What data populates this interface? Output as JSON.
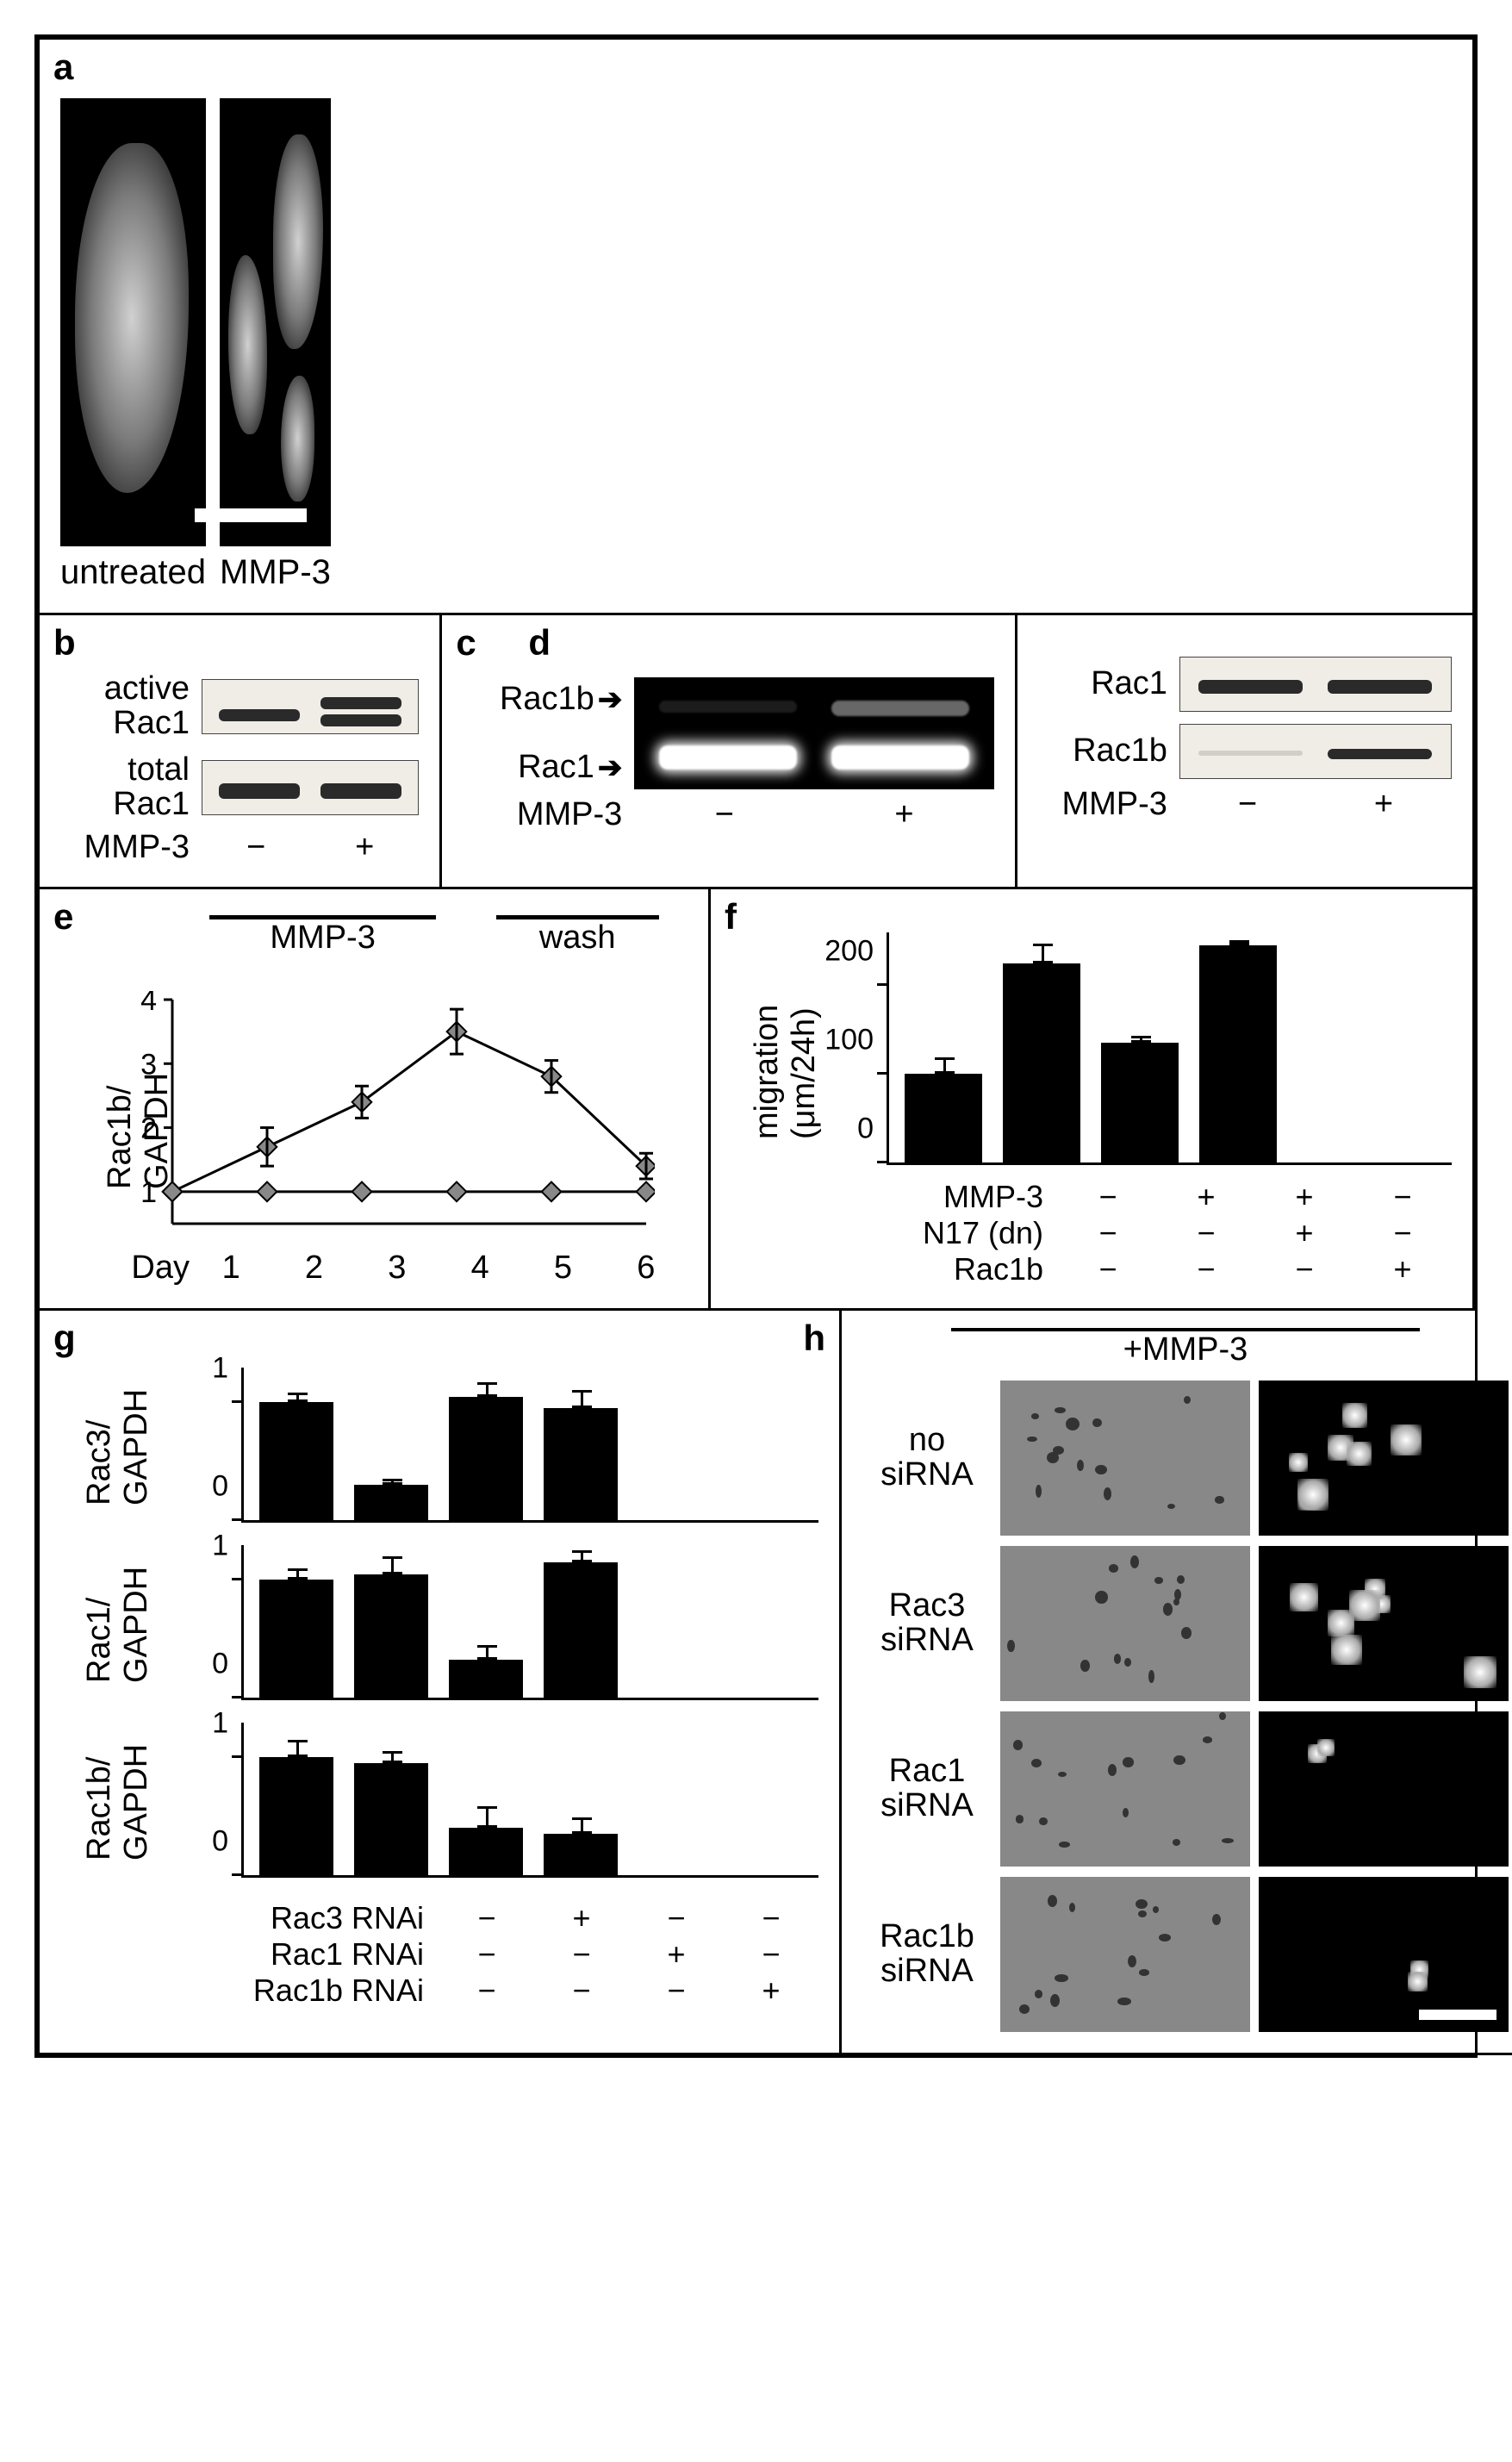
{
  "panels": {
    "a": {
      "label": "a",
      "left_caption": "untreated",
      "right_caption": "MMP-3",
      "scale_bar_present": true,
      "bg_color": "#000000"
    },
    "b": {
      "label": "b",
      "rows": [
        {
          "label": "active\nRac1"
        },
        {
          "label": "total\nRac1"
        }
      ],
      "condition_label": "MMP-3",
      "conditions": [
        "−",
        "+"
      ],
      "background": "#f0ece6",
      "band_color": "#2a2a2a"
    },
    "c": {
      "label": "c",
      "label2": "d",
      "gel_rows": [
        "Rac1b",
        "Rac1"
      ],
      "arrow_glyph": "➔",
      "condition_label": "MMP-3",
      "conditions": [
        "−",
        "+"
      ],
      "intensities": {
        "Rac1b": [
          0.05,
          0.4
        ],
        "Rac1": [
          1.0,
          1.0
        ]
      }
    },
    "d_right": {
      "rows": [
        "Rac1",
        "Rac1b"
      ],
      "condition_label": "MMP-3",
      "conditions": [
        "−",
        "+"
      ],
      "bands": {
        "Rac1": [
          1,
          1
        ],
        "Rac1b": [
          0.05,
          0.9
        ]
      }
    },
    "e": {
      "label": "e",
      "ylab": "Rac1b/\nGAPDH",
      "xlab": "Day",
      "overbars": [
        "MMP-3",
        "wash"
      ],
      "overbar_days": [
        [
          1,
          4
        ],
        [
          4,
          6
        ]
      ],
      "x": [
        1,
        2,
        3,
        4,
        5,
        6
      ],
      "yticks": [
        1,
        2,
        3,
        4
      ],
      "series": {
        "treated": [
          1.0,
          1.7,
          2.4,
          3.5,
          2.8,
          1.4
        ],
        "control": [
          1.0,
          1.0,
          1.0,
          1.0,
          1.0,
          1.0
        ]
      },
      "err_treated": [
        0.05,
        0.3,
        0.25,
        0.35,
        0.25,
        0.2
      ],
      "line_color": "#000000",
      "marker": "diamond"
    },
    "f": {
      "label": "f",
      "ylab": "migration\n(μm/24h)",
      "yticks": [
        0,
        100,
        200
      ],
      "bars": [
        100,
        225,
        135,
        245
      ],
      "err": [
        18,
        22,
        8,
        6
      ],
      "row_labels": [
        "MMP-3",
        "N17 (dn)",
        "Rac1b"
      ],
      "matrix": [
        [
          "−",
          "+",
          "+",
          "−"
        ],
        [
          "−",
          "−",
          "+",
          "−"
        ],
        [
          "−",
          "−",
          "−",
          "+"
        ]
      ],
      "bar_color": "#000000"
    },
    "g": {
      "label": "g",
      "label2": "h",
      "charts": [
        {
          "ylab": "Rac3/\nGAPDH",
          "bars": [
            1.0,
            0.3,
            1.05,
            0.95
          ],
          "err": [
            0.08,
            0.05,
            0.12,
            0.15
          ],
          "yticks": [
            0,
            1
          ]
        },
        {
          "ylab": "Rac1/\nGAPDH",
          "bars": [
            1.0,
            1.05,
            0.32,
            1.15
          ],
          "err": [
            0.1,
            0.15,
            0.12,
            0.1
          ],
          "yticks": [
            0,
            1
          ]
        },
        {
          "ylab": "Rac1b/\nGAPDH",
          "bars": [
            1.0,
            0.95,
            0.4,
            0.35
          ],
          "err": [
            0.15,
            0.1,
            0.18,
            0.14
          ],
          "yticks": [
            0,
            1
          ]
        }
      ],
      "row_labels": [
        "Rac3 RNAi",
        "Rac1 RNAi",
        "Rac1b RNAi"
      ],
      "matrix": [
        [
          "−",
          "+",
          "−",
          "−"
        ],
        [
          "−",
          "−",
          "+",
          "−"
        ],
        [
          "−",
          "−",
          "−",
          "+"
        ]
      ]
    },
    "h": {
      "header": "+MMP-3",
      "rows": [
        "no\nsiRNA",
        "Rac3\nsiRNA",
        "Rac1\nsiRNA",
        "Rac1b\nsiRNA"
      ],
      "scale_bar_present": true
    }
  },
  "style": {
    "border_color": "#000000",
    "label_fontsize": 42,
    "axis_fontsize": 38,
    "band_bg": "#f0ece6",
    "gel_bg": "#000000"
  }
}
